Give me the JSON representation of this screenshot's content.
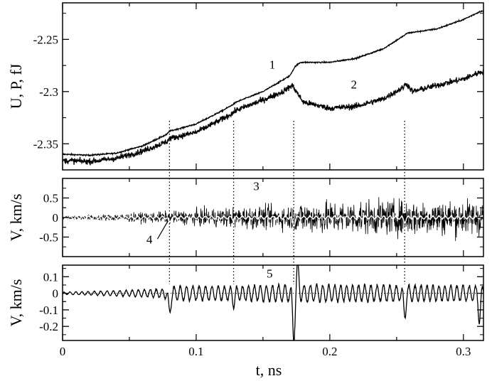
{
  "chart_data": [
    {
      "id": "energy",
      "type": "line",
      "ylabel": "U, P, fJ",
      "ylim": [
        -2.375,
        -2.215
      ],
      "yticks": [
        -2.35,
        -2.3,
        -2.25
      ],
      "ytick_labels": [
        "-2.35",
        "-2.3",
        "-2.25"
      ],
      "xlim": [
        0,
        0.315
      ],
      "series": [
        {
          "name": "1",
          "noise": 0.0006,
          "points": [
            [
              0,
              -2.36
            ],
            [
              0.02,
              -2.361
            ],
            [
              0.04,
              -2.359
            ],
            [
              0.06,
              -2.352
            ],
            [
              0.078,
              -2.341
            ],
            [
              0.08,
              -2.338
            ],
            [
              0.1,
              -2.331
            ],
            [
              0.12,
              -2.318
            ],
            [
              0.128,
              -2.312
            ],
            [
              0.13,
              -2.31
            ],
            [
              0.15,
              -2.3
            ],
            [
              0.17,
              -2.285
            ],
            [
              0.174,
              -2.276
            ],
            [
              0.178,
              -2.272
            ],
            [
              0.2,
              -2.272
            ],
            [
              0.22,
              -2.268
            ],
            [
              0.24,
              -2.259
            ],
            [
              0.256,
              -2.246
            ],
            [
              0.258,
              -2.244
            ],
            [
              0.28,
              -2.24
            ],
            [
              0.3,
              -2.231
            ],
            [
              0.313,
              -2.223
            ]
          ]
        },
        {
          "name": "2",
          "noise": 0.0028,
          "points": [
            [
              0,
              -2.366
            ],
            [
              0.02,
              -2.367
            ],
            [
              0.04,
              -2.364
            ],
            [
              0.06,
              -2.357
            ],
            [
              0.078,
              -2.348
            ],
            [
              0.08,
              -2.345
            ],
            [
              0.1,
              -2.339
            ],
            [
              0.12,
              -2.326
            ],
            [
              0.128,
              -2.32
            ],
            [
              0.13,
              -2.318
            ],
            [
              0.15,
              -2.308
            ],
            [
              0.165,
              -2.3
            ],
            [
              0.172,
              -2.294
            ],
            [
              0.176,
              -2.302
            ],
            [
              0.18,
              -2.31
            ],
            [
              0.19,
              -2.313
            ],
            [
              0.2,
              -2.316
            ],
            [
              0.22,
              -2.314
            ],
            [
              0.24,
              -2.307
            ],
            [
              0.255,
              -2.296
            ],
            [
              0.257,
              -2.292
            ],
            [
              0.262,
              -2.3
            ],
            [
              0.28,
              -2.294
            ],
            [
              0.3,
              -2.288
            ],
            [
              0.313,
              -2.281
            ]
          ]
        }
      ],
      "annotations": [
        {
          "text": "1",
          "x": 0.157,
          "y": -2.278
        },
        {
          "text": "2",
          "x": 0.218,
          "y": -2.297
        }
      ]
    },
    {
      "id": "velocity",
      "type": "line",
      "ylabel": "V, km/s",
      "ylim": [
        -1.0,
        1.0
      ],
      "yticks": [
        -0.5,
        0,
        0.5
      ],
      "ytick_labels": [
        "-0.5",
        "0",
        "0.5"
      ],
      "xlim": [
        0,
        0.315
      ],
      "series": [
        {
          "name": "3",
          "color": "#000000",
          "envelope": [
            [
              0,
              0.05
            ],
            [
              0.04,
              0.12
            ],
            [
              0.08,
              0.2
            ],
            [
              0.12,
              0.32
            ],
            [
              0.17,
              0.4
            ],
            [
              0.18,
              0.52
            ],
            [
              0.26,
              0.58
            ],
            [
              0.313,
              0.58
            ]
          ]
        },
        {
          "name": "4",
          "color": "#ffffff",
          "amplitude": 0.05,
          "spikes": [
            [
              0.08,
              -0.12
            ],
            [
              0.128,
              -0.06
            ],
            [
              0.173,
              -0.2
            ],
            [
              0.256,
              -0.1
            ]
          ]
        }
      ],
      "annotations": [
        {
          "text": "3",
          "x": 0.145,
          "y": 0.7
        },
        {
          "text": "4",
          "x": 0.065,
          "y": -0.66
        }
      ]
    },
    {
      "id": "velocity-averaged",
      "type": "line",
      "ylabel": "V, km/s",
      "xlabel": "t, ns",
      "ylim": [
        -0.285,
        0.17
      ],
      "yticks": [
        -0.2,
        -0.1,
        0,
        0.1
      ],
      "ytick_labels": [
        "-0.2",
        "-0.1",
        "0",
        "0.1"
      ],
      "xlim": [
        0,
        0.315
      ],
      "xticks": [
        0,
        0.1,
        0.2,
        0.3
      ],
      "xtick_labels": [
        "0",
        "0.1",
        "0.2",
        "0.3"
      ],
      "series": [
        {
          "name": "5",
          "envelope": [
            [
              0,
              0.008
            ],
            [
              0.04,
              0.018
            ],
            [
              0.075,
              0.03
            ],
            [
              0.08,
              0.05
            ],
            [
              0.13,
              0.05
            ],
            [
              0.17,
              0.06
            ],
            [
              0.26,
              0.055
            ],
            [
              0.313,
              0.055
            ]
          ],
          "spikes": [
            [
              0.08,
              -0.11
            ],
            [
              0.128,
              -0.05
            ],
            [
              0.173,
              -0.26
            ],
            [
              0.176,
              0.15
            ],
            [
              0.256,
              -0.12
            ],
            [
              0.312,
              -0.14
            ]
          ]
        }
      ],
      "annotations": [
        {
          "text": "5",
          "x": 0.155,
          "y": 0.095
        }
      ]
    }
  ],
  "event_lines": [
    0.08,
    0.128,
    0.173,
    0.256
  ]
}
